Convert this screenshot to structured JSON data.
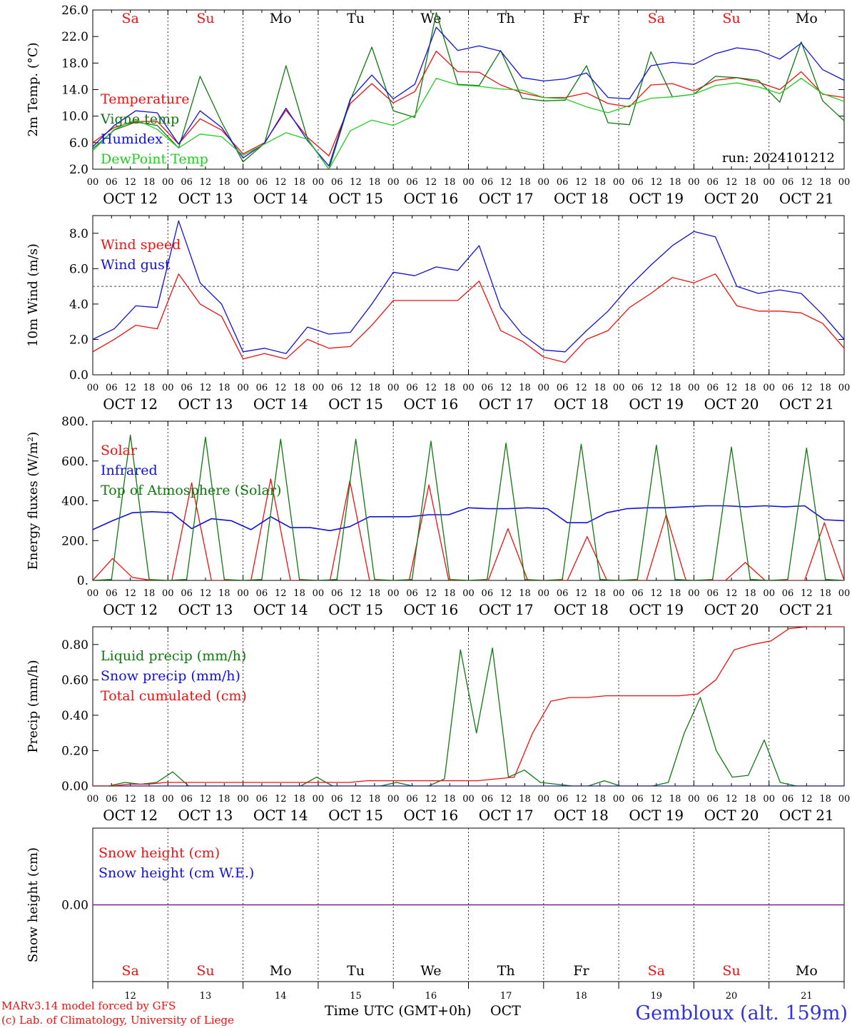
{
  "colors": {
    "red": "#ee1111",
    "green": "#117711",
    "blue": "#1111dd",
    "lime": "#22cc22",
    "purple": "#7a1a8a",
    "axis": "#000000"
  },
  "days": {
    "weekdays_top": [
      "Sa",
      "Su",
      "Mo",
      "Tu",
      "We",
      "Th",
      "Fr",
      "Sa",
      "Su",
      "Mo"
    ],
    "weekend_flags": [
      true,
      true,
      false,
      false,
      false,
      false,
      false,
      true,
      true,
      false
    ],
    "date_labels": [
      "OCT 12",
      "OCT 13",
      "OCT 14",
      "OCT 15",
      "OCT 16",
      "OCT 17",
      "OCT 18",
      "OCT 19",
      "OCT 20",
      "OCT 21"
    ],
    "day_numbers": [
      "12",
      "13",
      "14",
      "15",
      "16",
      "17",
      "18",
      "19",
      "20",
      "21"
    ],
    "hour_ticks": [
      "00",
      "06",
      "12",
      "18"
    ],
    "end_tick": "00"
  },
  "footer": {
    "model_line": "MARv3.14 model forced by GFS",
    "lab_line": "(c) Lab. of Climatology, University of Liege",
    "xlabel_time": "Time UTC (GMT+0h)",
    "xlabel_month": "OCT",
    "station": "Gembloux (alt. 159m)"
  },
  "chart_data": [
    {
      "type": "line",
      "ylabel": "2m Temp. (°C)",
      "ylim": [
        2.0,
        26.0
      ],
      "yticks": [
        "2.0",
        "6.0",
        "10.0",
        "14.0",
        "18.0",
        "22.0",
        "26.0"
      ],
      "annotation": "run: 2024101212",
      "x_unit": "hours since OCT 12 00 UTC, 6-hour step",
      "series": [
        {
          "name": "Temperature",
          "color": "red",
          "values": [
            6.0,
            8.3,
            9.2,
            9.2,
            5.8,
            9.6,
            7.9,
            4.3,
            6.0,
            10.9,
            6.8,
            4.0,
            11.9,
            14.9,
            12.0,
            13.7,
            19.8,
            16.7,
            16.6,
            14.7,
            13.5,
            12.8,
            12.8,
            13.5,
            11.9,
            11.4,
            14.7,
            14.9,
            13.8,
            15.4,
            15.8,
            15.1,
            14.0,
            16.7,
            13.3,
            12.8
          ]
        },
        {
          "name": "Vigne temp",
          "color": "green",
          "values": [
            5.1,
            7.9,
            9.1,
            8.6,
            5.2,
            16.0,
            9.1,
            3.1,
            5.9,
            17.6,
            6.6,
            2.0,
            12.4,
            20.4,
            10.8,
            9.8,
            25.6,
            14.8,
            14.6,
            19.9,
            12.7,
            12.3,
            12.4,
            17.6,
            9.0,
            8.7,
            19.7,
            12.9,
            13.3,
            16.0,
            15.8,
            15.4,
            12.1,
            21.2,
            12.3,
            9.3
          ]
        },
        {
          "name": "Humidex",
          "color": "blue",
          "values": [
            5.4,
            8.6,
            10.8,
            10.5,
            5.8,
            10.8,
            8.3,
            3.7,
            5.9,
            11.2,
            6.3,
            2.5,
            12.6,
            16.2,
            12.6,
            14.8,
            23.4,
            19.9,
            20.6,
            19.8,
            15.8,
            15.3,
            15.6,
            16.5,
            12.8,
            12.6,
            17.6,
            18.1,
            17.8,
            19.4,
            20.3,
            19.9,
            18.6,
            21.0,
            17.0,
            15.4
          ]
        },
        {
          "name": "DewPoint Temp",
          "color": "lime",
          "values": [
            4.8,
            8.0,
            9.5,
            8.0,
            5.2,
            7.3,
            6.9,
            4.1,
            5.8,
            7.5,
            6.5,
            2.0,
            7.8,
            9.4,
            8.6,
            10.1,
            15.7,
            14.7,
            14.5,
            14.1,
            13.9,
            12.8,
            12.6,
            11.4,
            10.5,
            11.6,
            12.7,
            12.9,
            13.3,
            14.6,
            15.0,
            14.4,
            13.4,
            15.7,
            13.4,
            12.2
          ]
        }
      ]
    },
    {
      "type": "line",
      "ylabel": "10m Wind (m/s)",
      "ylim": [
        0.0,
        9.0
      ],
      "yticks": [
        "0.0",
        "2.0",
        "4.0",
        "6.0",
        "8.0"
      ],
      "ref_line": 5.0,
      "series": [
        {
          "name": "Wind speed",
          "color": "red",
          "values": [
            1.3,
            2.0,
            2.8,
            2.6,
            5.7,
            4.0,
            3.3,
            0.9,
            1.2,
            0.9,
            2.0,
            1.5,
            1.6,
            2.8,
            4.2,
            4.2,
            4.2,
            4.2,
            5.3,
            2.5,
            1.9,
            1.0,
            0.7,
            2.0,
            2.5,
            3.8,
            4.6,
            5.5,
            5.2,
            5.7,
            3.9,
            3.6,
            3.6,
            3.5,
            2.9,
            1.5
          ]
        },
        {
          "name": "Wind gust",
          "color": "blue",
          "values": [
            2.0,
            2.6,
            3.9,
            3.8,
            8.7,
            5.2,
            4.0,
            1.3,
            1.5,
            1.2,
            2.7,
            2.3,
            2.4,
            4.0,
            5.8,
            5.6,
            6.1,
            5.9,
            7.3,
            3.8,
            2.3,
            1.4,
            1.3,
            2.5,
            3.6,
            5.0,
            6.2,
            7.3,
            8.1,
            7.8,
            5.0,
            4.6,
            4.8,
            4.6,
            3.4,
            2.0
          ]
        }
      ]
    },
    {
      "type": "line",
      "ylabel": "Energy fluxes (W/m²)",
      "ylim": [
        0,
        800
      ],
      "yticks": [
        "0.",
        "200.",
        "400.",
        "600.",
        "800."
      ],
      "series": [
        {
          "name": "Solar",
          "color": "red",
          "values": [
            0,
            110,
            15,
            0,
            0,
            490,
            0,
            0,
            0,
            510,
            0,
            0,
            0,
            500,
            0,
            0,
            0,
            480,
            0,
            0,
            0,
            260,
            0,
            0,
            0,
            220,
            0,
            0,
            0,
            330,
            0,
            0,
            0,
            90,
            0,
            0,
            0,
            290,
            0
          ]
        },
        {
          "name": "Infrared",
          "color": "blue",
          "values": [
            255,
            300,
            340,
            345,
            340,
            260,
            310,
            300,
            255,
            320,
            265,
            265,
            250,
            270,
            320,
            320,
            320,
            330,
            330,
            365,
            360,
            360,
            365,
            360,
            290,
            290,
            340,
            360,
            365,
            365,
            370,
            375,
            375,
            370,
            375,
            370,
            375,
            305,
            300
          ]
        },
        {
          "name": "Top of Atmosphere (Solar)",
          "color": "green",
          "values": [
            0,
            5,
            730,
            5,
            0,
            5,
            720,
            5,
            0,
            5,
            710,
            5,
            0,
            5,
            710,
            5,
            0,
            5,
            700,
            5,
            0,
            5,
            690,
            5,
            0,
            5,
            685,
            5,
            0,
            5,
            680,
            5,
            0,
            5,
            670,
            5,
            0,
            5,
            665,
            5,
            0
          ]
        }
      ]
    },
    {
      "type": "line",
      "ylabel": "Precip (mm/h)",
      "ylim": [
        0.0,
        0.9
      ],
      "yticks": [
        "0.00",
        "0.20",
        "0.40",
        "0.60",
        "0.80"
      ],
      "series": [
        {
          "name": "Liquid precip (mm/h)",
          "color": "green",
          "values": [
            0,
            0,
            0.02,
            0.01,
            0.02,
            0.08,
            0,
            0,
            0,
            0,
            0,
            0,
            0,
            0,
            0.05,
            0,
            0,
            0,
            0,
            0.02,
            0,
            0,
            0.04,
            0.77,
            0.3,
            0.78,
            0.05,
            0.09,
            0.02,
            0.01,
            0,
            0,
            0.03,
            0,
            0,
            0,
            0.02,
            0.3,
            0.5,
            0.2,
            0.05,
            0.06,
            0.26,
            0.02,
            0,
            0,
            0,
            0
          ]
        },
        {
          "name": "Snow precip (mm/h)",
          "color": "blue",
          "values": [
            0,
            0,
            0,
            0,
            0,
            0,
            0,
            0,
            0,
            0,
            0,
            0,
            0,
            0,
            0,
            0,
            0,
            0,
            0,
            0,
            0,
            0,
            0,
            0,
            0,
            0,
            0,
            0,
            0,
            0,
            0,
            0,
            0,
            0,
            0,
            0,
            0,
            0,
            0,
            0,
            0,
            0,
            0,
            0,
            0
          ]
        },
        {
          "name": "Total cumulated (cm)",
          "color": "red",
          "values": [
            0,
            0,
            0.01,
            0.01,
            0.02,
            0.02,
            0.02,
            0.02,
            0.02,
            0.02,
            0.02,
            0.02,
            0.02,
            0.02,
            0.02,
            0.03,
            0.03,
            0.03,
            0.03,
            0.03,
            0.03,
            0.03,
            0.04,
            0.05,
            0.3,
            0.48,
            0.5,
            0.5,
            0.51,
            0.51,
            0.51,
            0.51,
            0.51,
            0.52,
            0.6,
            0.77,
            0.8,
            0.82,
            0.89,
            0.9,
            0.9,
            0.9
          ]
        }
      ]
    },
    {
      "type": "line",
      "ylabel": "Snow height (cm)",
      "ylim": [
        -1.0,
        1.0
      ],
      "yticks": [
        "0.00"
      ],
      "series": [
        {
          "name": "Snow height (cm)",
          "color": "red",
          "values": [
            0,
            0
          ]
        },
        {
          "name": "Snow height (cm W.E.)",
          "color": "blue",
          "values": [
            0,
            0
          ]
        }
      ]
    }
  ]
}
